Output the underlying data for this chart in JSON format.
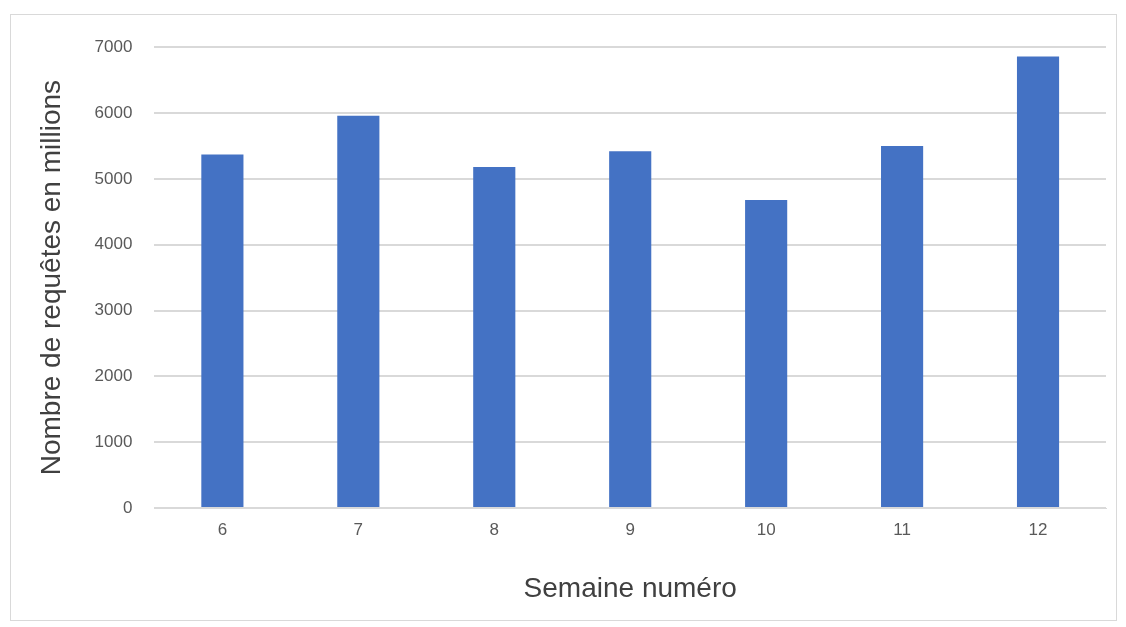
{
  "chart_data": {
    "type": "bar",
    "xlabel": "Semaine numéro",
    "ylabel": "Nombre de requêtes en millions",
    "categories": [
      "6",
      "7",
      "8",
      "9",
      "10",
      "11",
      "12"
    ],
    "values": [
      5370,
      5960,
      5180,
      5420,
      4680,
      5500,
      6860
    ],
    "color": "#4472c4",
    "ylim": [
      0,
      7000
    ],
    "yticks": [
      0,
      1000,
      2000,
      3000,
      4000,
      5000,
      6000,
      7000
    ],
    "grid": "y",
    "legend": false
  }
}
